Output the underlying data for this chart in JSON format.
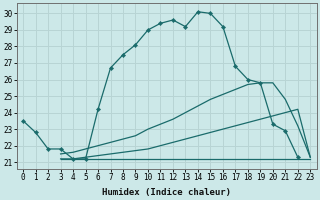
{
  "background_color": "#cce8e8",
  "grid_color": "#b8d4d4",
  "line_color": "#1a6b6b",
  "xlim": [
    -0.5,
    23.5
  ],
  "ylim": [
    20.6,
    30.6
  ],
  "yticks": [
    21,
    22,
    23,
    24,
    25,
    26,
    27,
    28,
    29,
    30
  ],
  "xticks": [
    0,
    1,
    2,
    3,
    4,
    5,
    6,
    7,
    8,
    9,
    10,
    11,
    12,
    13,
    14,
    15,
    16,
    17,
    18,
    19,
    20,
    21,
    22,
    23
  ],
  "xlabel": "Humidex (Indice chaleur)",
  "curve1_x": [
    0,
    1,
    2,
    3,
    4,
    5,
    6,
    7,
    8,
    9,
    10,
    11,
    12,
    13,
    14,
    15,
    16,
    17,
    18,
    19,
    20,
    21,
    22
  ],
  "curve1_y": [
    23.5,
    22.8,
    21.8,
    21.8,
    21.2,
    21.2,
    24.2,
    26.7,
    27.5,
    28.1,
    29.0,
    29.4,
    29.6,
    29.2,
    30.1,
    30.0,
    29.2,
    26.8,
    26.0,
    25.8,
    23.3,
    22.9,
    21.3
  ],
  "curve2_x": [
    3,
    4,
    5,
    6,
    7,
    8,
    9,
    10,
    11,
    12,
    13,
    14,
    15,
    16,
    17,
    18,
    19,
    20,
    21,
    22,
    23
  ],
  "curve2_y": [
    21.2,
    21.2,
    21.2,
    21.2,
    21.2,
    21.2,
    21.2,
    21.2,
    21.2,
    21.2,
    21.2,
    21.2,
    21.2,
    21.2,
    21.2,
    21.2,
    21.2,
    21.2,
    21.2,
    21.2,
    21.2
  ],
  "curve3_x": [
    3,
    4,
    5,
    6,
    7,
    8,
    9,
    10,
    11,
    12,
    13,
    14,
    15,
    16,
    17,
    18,
    19,
    20,
    21,
    22,
    23
  ],
  "curve3_y": [
    21.5,
    21.6,
    21.8,
    22.0,
    22.2,
    22.4,
    22.6,
    23.0,
    23.3,
    23.6,
    24.0,
    24.4,
    24.8,
    25.1,
    25.4,
    25.7,
    25.8,
    25.8,
    24.8,
    23.2,
    21.3
  ],
  "curve4_x": [
    3,
    4,
    5,
    6,
    7,
    8,
    9,
    10,
    11,
    12,
    13,
    14,
    15,
    16,
    17,
    18,
    19,
    20,
    21,
    22,
    23
  ],
  "curve4_y": [
    21.2,
    21.2,
    21.3,
    21.4,
    21.5,
    21.6,
    21.7,
    21.8,
    22.0,
    22.2,
    22.4,
    22.6,
    22.8,
    23.0,
    23.2,
    23.4,
    23.6,
    23.8,
    24.0,
    24.2,
    21.3
  ]
}
